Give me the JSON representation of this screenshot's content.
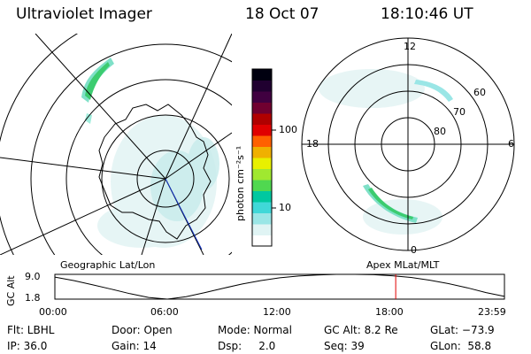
{
  "header": {
    "instrument": "Ultraviolet Imager",
    "date": "18 Oct 07",
    "time": "18:10:46 UT"
  },
  "left_panel": {
    "caption": "Geographic Lat/Lon"
  },
  "right_panel": {
    "caption": "Apex MLat/MLT",
    "mlt_labels": [
      "12",
      "6",
      "0",
      "18"
    ],
    "mlat_labels": [
      "60",
      "70",
      "80"
    ]
  },
  "colorbar": {
    "unit_label": "photon cm⁻²s⁻¹",
    "ticks": [
      {
        "label": "100",
        "value": 100
      },
      {
        "label": "10",
        "value": 10
      }
    ],
    "colors": [
      "#ffffff",
      "#e0f4f4",
      "#9ae6e6",
      "#40d8d8",
      "#00c8a0",
      "#50d850",
      "#a0e830",
      "#e8f000",
      "#f0b000",
      "#ff6000",
      "#e00000",
      "#b00000",
      "#700030",
      "#400040",
      "#200030",
      "#000010"
    ]
  },
  "chart_data": [
    {
      "type": "line",
      "title": "GC Alt",
      "ylabel": "GC Alt",
      "y_ticks": [
        "9.0",
        "1.8"
      ],
      "ylim": [
        1.8,
        9.0
      ],
      "x_ticks": [
        "00:00",
        "06:00",
        "12:00",
        "18:00",
        "23:59"
      ],
      "xlim_hours": [
        0,
        23.98
      ],
      "series": [
        {
          "x_hours": [
            0,
            1,
            2,
            3,
            4,
            5,
            6,
            7,
            8,
            9,
            10,
            11,
            12,
            13,
            14,
            15,
            16,
            17,
            18,
            19,
            20,
            21,
            22,
            23,
            23.98
          ],
          "values": [
            8.2,
            7.2,
            6.0,
            4.7,
            3.4,
            2.3,
            1.8,
            2.5,
            3.7,
            5.0,
            6.2,
            7.2,
            8.0,
            8.5,
            8.8,
            9.0,
            9.0,
            8.9,
            8.6,
            8.1,
            7.3,
            6.3,
            5.1,
            3.7,
            2.6
          ]
        }
      ],
      "marker": {
        "x_hours": 18.18,
        "color": "#e00000"
      }
    }
  ],
  "footer": {
    "filter": "Flt: LBHL",
    "door": "Door: Open",
    "mode": "Mode: Normal",
    "gc_alt": "GC Alt: 8.2 Re",
    "glat": "GLat: −73.9",
    "ip": "IP: 36.0",
    "gain": "Gain: 14",
    "dsp": "Dsp:     2.0",
    "seq": "Seq: 39",
    "glon": "GLon:  58.8"
  }
}
